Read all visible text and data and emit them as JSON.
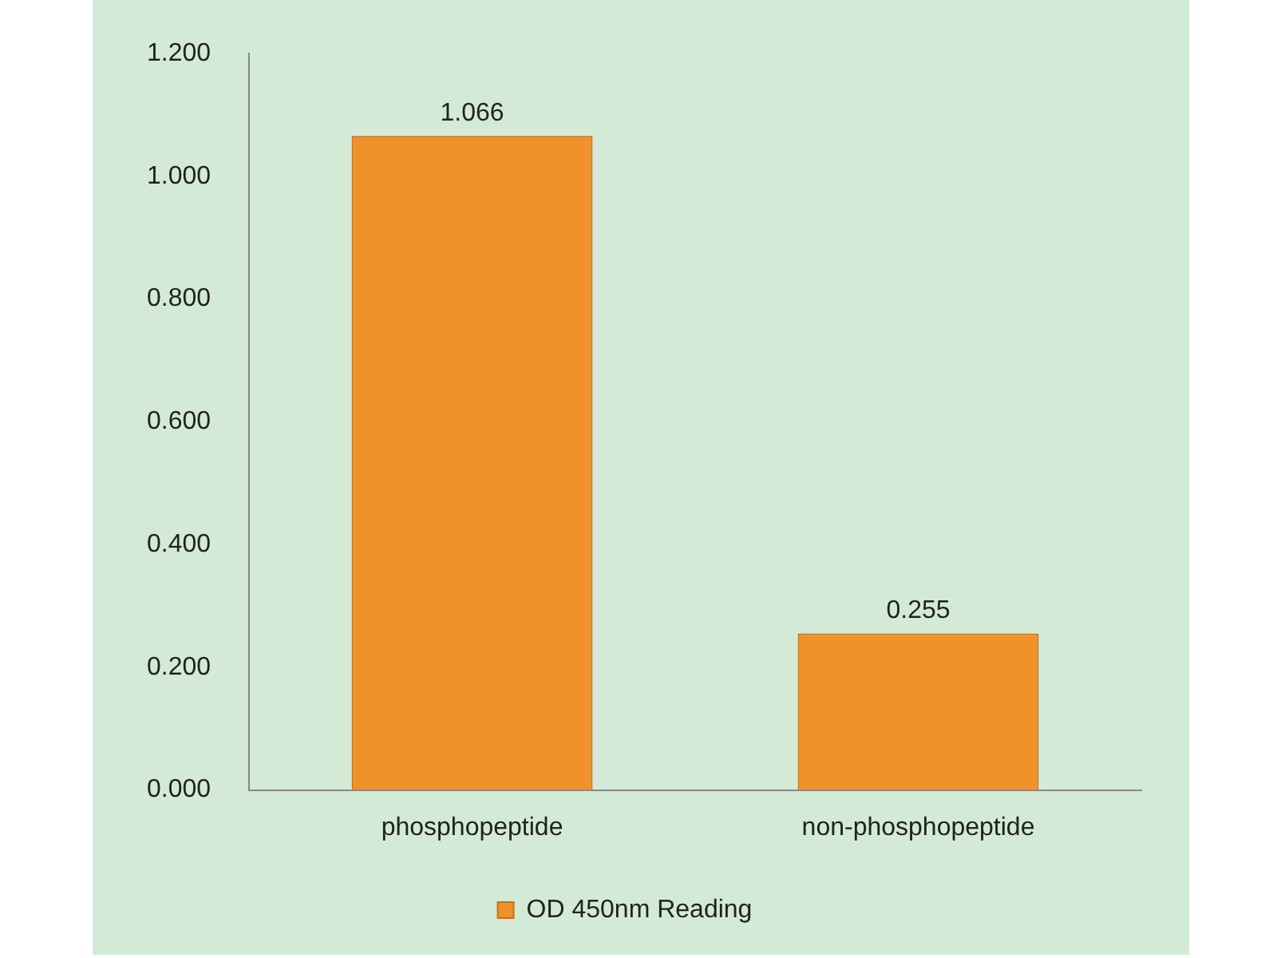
{
  "chart_data": {
    "type": "bar",
    "categories": [
      "phosphopeptide",
      "non-phosphopeptide"
    ],
    "series": [
      {
        "name": "OD 450nm Reading",
        "color": "#f0922a",
        "values": [
          1.066,
          0.255
        ]
      }
    ],
    "ylim": [
      0,
      1.2
    ],
    "yticks": [
      {
        "value": 0,
        "label": "0.000"
      },
      {
        "value": 0.2,
        "label": "0.200"
      },
      {
        "value": 0.4,
        "label": "0.400"
      },
      {
        "value": 0.6,
        "label": "0.600"
      },
      {
        "value": 0.8,
        "label": "0.800"
      },
      {
        "value": 1,
        "label": "1.000"
      },
      {
        "value": 1.2,
        "label": "1.200"
      }
    ],
    "grid": false,
    "legend": "bottom",
    "data_labels": true
  }
}
